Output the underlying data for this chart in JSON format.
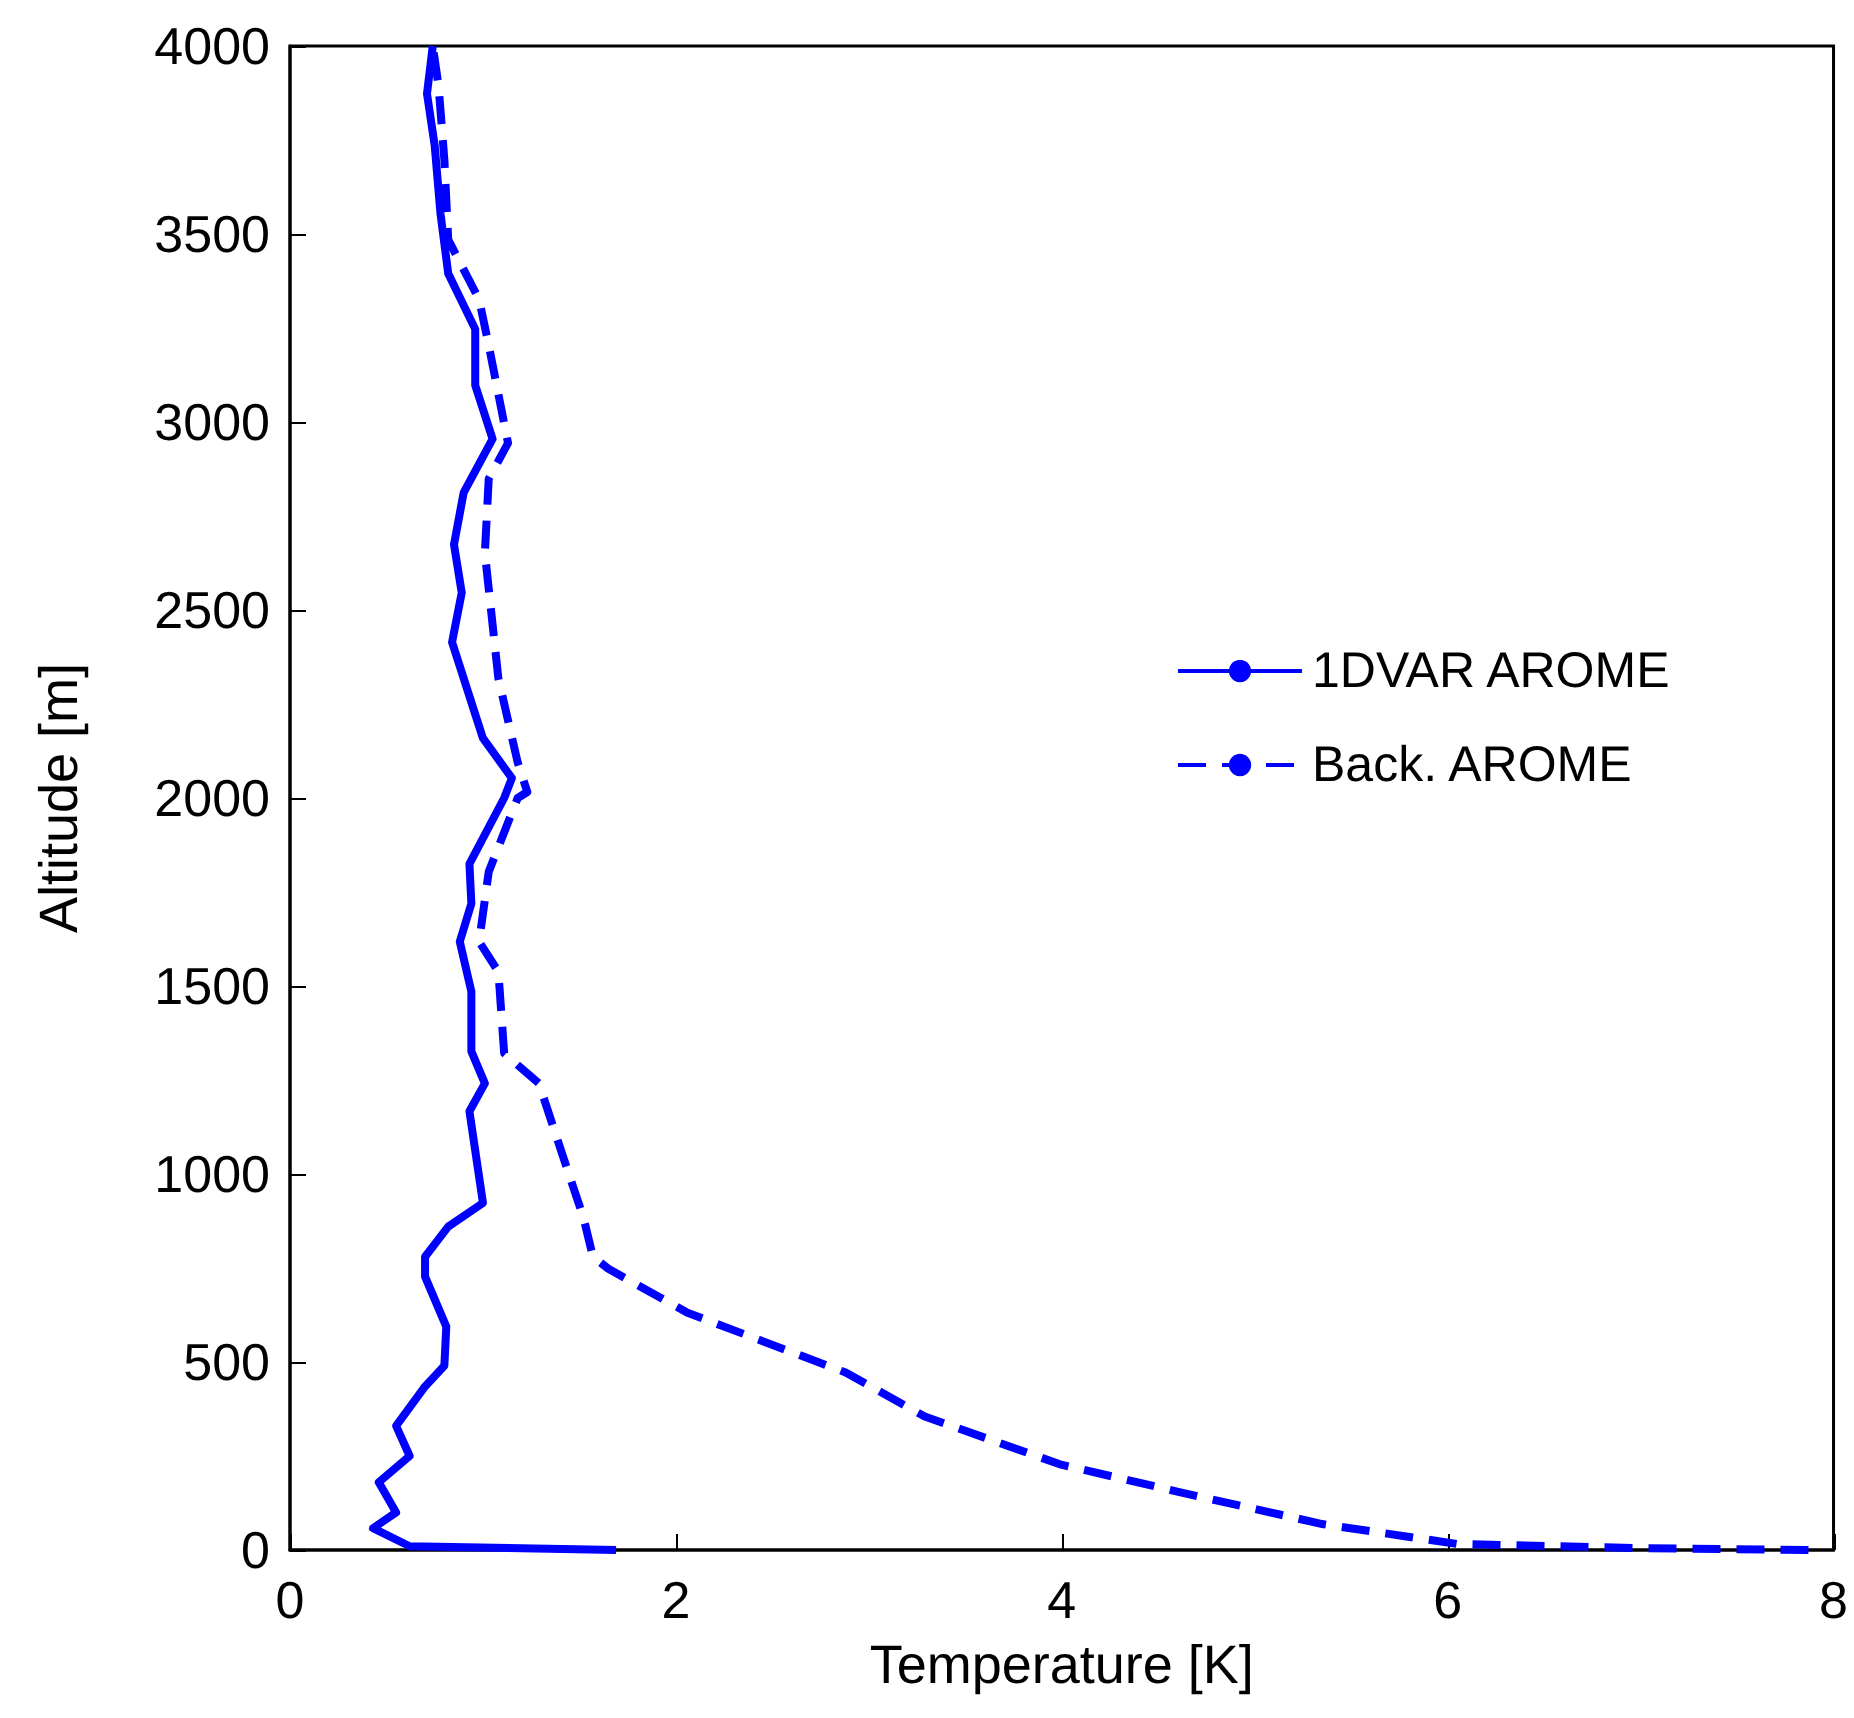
{
  "chart_data": {
    "type": "line",
    "xlabel": "Temperature [K]",
    "ylabel": "Altitude [m]",
    "xlim": [
      0,
      8
    ],
    "xticks": [
      0,
      2,
      4,
      6,
      8
    ],
    "ylim": [
      0,
      4000
    ],
    "yticks": [
      0,
      500,
      1000,
      1500,
      2000,
      2500,
      3000,
      3500,
      4000
    ],
    "legend": "right",
    "marker": "none",
    "series": [
      {
        "name": "1DVAR AROME",
        "color": "#0000ff",
        "line_style": "solid",
        "x": [
          1.69,
          0.62,
          0.43,
          0.55,
          0.46,
          0.62,
          0.55,
          0.7,
          0.8,
          0.81,
          0.7,
          0.7,
          0.82,
          1.0,
          0.93,
          1.01,
          0.94,
          0.94,
          0.88,
          0.94,
          0.93,
          1.11,
          1.15,
          1.0,
          0.84,
          0.89,
          0.85,
          0.9,
          1.05,
          0.96,
          0.96,
          0.82,
          0.78,
          0.75,
          0.71,
          0.74
        ],
        "values": [
          0,
          10,
          58,
          100,
          180,
          250,
          330,
          435,
          490,
          594,
          727,
          780,
          860,
          923,
          1167,
          1241,
          1326,
          1485,
          1618,
          1719,
          1825,
          2000,
          2053,
          2159,
          2414,
          2546,
          2674,
          2812,
          2955,
          3098,
          3247,
          3395,
          3554,
          3735,
          3873,
          4000
        ]
      },
      {
        "name": "Back. AROME",
        "color": "#0000ff",
        "line_style": "dashed",
        "x": [
          7.87,
          7.0,
          6.05,
          5.35,
          4.61,
          3.99,
          3.29,
          2.88,
          2.06,
          1.65,
          1.57,
          1.52,
          1.44,
          1.29,
          1.11,
          1.08,
          0.98,
          1.03,
          1.18,
          1.23,
          1.18,
          1.08,
          1.01,
          1.03,
          1.13,
          1.03,
          0.98,
          0.82,
          0.8,
          0.77,
          0.74
        ],
        "values": [
          0,
          5,
          16,
          69,
          154,
          228,
          355,
          472,
          631,
          748,
          780,
          886,
          1008,
          1241,
          1321,
          1538,
          1618,
          1804,
          2000,
          2016,
          2095,
          2318,
          2652,
          2849,
          2944,
          3204,
          3326,
          3485,
          3698,
          3894,
          4000
        ]
      }
    ]
  }
}
